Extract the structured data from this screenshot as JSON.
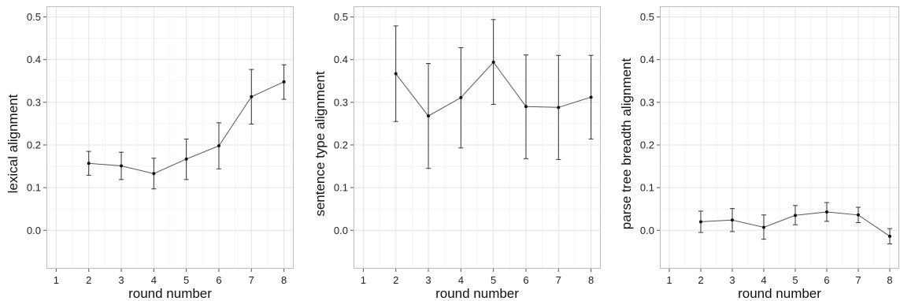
{
  "chart_data": [
    {
      "type": "line",
      "xlabel": "round number",
      "ylabel": "lexical alignment",
      "xlim": [
        0.7,
        8.3
      ],
      "ylim": [
        -0.09,
        0.525
      ],
      "x_ticks": [
        "1",
        "2",
        "3",
        "4",
        "5",
        "6",
        "7",
        "8"
      ],
      "y_ticks": [
        "0.0",
        "0.1",
        "0.2",
        "0.3",
        "0.4",
        "0.5"
      ],
      "grid": true,
      "error_bars": true,
      "series": [
        {
          "x": [
            2,
            3,
            4,
            5,
            6,
            7,
            8
          ],
          "y": [
            0.157,
            0.151,
            0.133,
            0.167,
            0.198,
            0.313,
            0.348
          ],
          "err_low": [
            0.129,
            0.119,
            0.097,
            0.119,
            0.144,
            0.249,
            0.307
          ],
          "err_high": [
            0.185,
            0.183,
            0.169,
            0.214,
            0.252,
            0.377,
            0.388
          ]
        }
      ]
    },
    {
      "type": "line",
      "xlabel": "round number",
      "ylabel": "sentence type alignment",
      "xlim": [
        0.7,
        8.3
      ],
      "ylim": [
        -0.09,
        0.525
      ],
      "x_ticks": [
        "1",
        "2",
        "3",
        "4",
        "5",
        "6",
        "7",
        "8"
      ],
      "y_ticks": [
        "0.0",
        "0.1",
        "0.2",
        "0.3",
        "0.4",
        "0.5"
      ],
      "grid": true,
      "error_bars": true,
      "series": [
        {
          "x": [
            2,
            3,
            4,
            5,
            6,
            7,
            8
          ],
          "y": [
            0.367,
            0.268,
            0.311,
            0.394,
            0.29,
            0.288,
            0.312
          ],
          "err_low": [
            0.255,
            0.145,
            0.193,
            0.295,
            0.168,
            0.166,
            0.214
          ],
          "err_high": [
            0.479,
            0.391,
            0.428,
            0.494,
            0.411,
            0.41,
            0.41
          ]
        }
      ]
    },
    {
      "type": "line",
      "xlabel": "round number",
      "ylabel": "parse tree breadth alignment",
      "xlim": [
        0.7,
        8.3
      ],
      "ylim": [
        -0.09,
        0.525
      ],
      "x_ticks": [
        "1",
        "2",
        "3",
        "4",
        "5",
        "6",
        "7",
        "8"
      ],
      "y_ticks": [
        "0.0",
        "0.1",
        "0.2",
        "0.3",
        "0.4",
        "0.5"
      ],
      "grid": true,
      "error_bars": true,
      "series": [
        {
          "x": [
            2,
            3,
            4,
            5,
            6,
            7,
            8
          ],
          "y": [
            0.02,
            0.024,
            0.007,
            0.035,
            0.043,
            0.036,
            -0.014
          ],
          "err_low": [
            -0.005,
            -0.003,
            -0.021,
            0.013,
            0.021,
            0.018,
            -0.032
          ],
          "err_high": [
            0.045,
            0.051,
            0.036,
            0.058,
            0.065,
            0.054,
            0.004
          ]
        }
      ]
    }
  ]
}
